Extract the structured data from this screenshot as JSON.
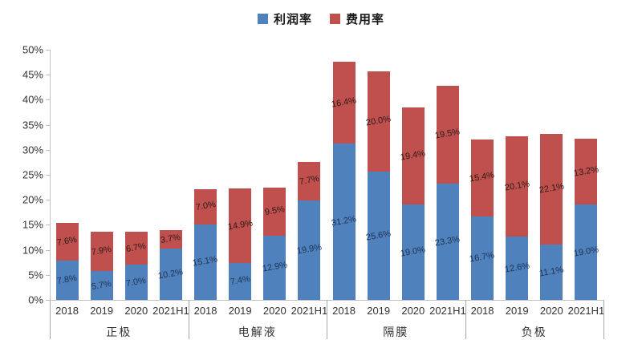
{
  "chart_data": {
    "type": "bar",
    "stacked": true,
    "title": "",
    "legend_position": "top",
    "grid": false,
    "ylim": [
      0,
      50
    ],
    "ytick_step": 5,
    "ytick_labels": [
      "0%",
      "5%",
      "10%",
      "15%",
      "20%",
      "25%",
      "30%",
      "35%",
      "40%",
      "45%",
      "50%"
    ],
    "groups": [
      "正极",
      "电解液",
      "隔膜",
      "负极"
    ],
    "years": [
      "2018",
      "2019",
      "2020",
      "2021H1"
    ],
    "series": [
      {
        "name": "利润率",
        "color": "#4F81BD",
        "label_color": "#1f3352",
        "values": [
          [
            7.8,
            5.7,
            7.0,
            10.2
          ],
          [
            15.1,
            7.4,
            12.9,
            19.9
          ],
          [
            31.2,
            25.6,
            19.0,
            23.3
          ],
          [
            16.7,
            12.6,
            11.1,
            19.0
          ]
        ]
      },
      {
        "name": "费用率",
        "color": "#C0504D",
        "label_color": "#2b1b1b",
        "values": [
          [
            7.6,
            7.9,
            6.7,
            3.7
          ],
          [
            7.0,
            14.9,
            9.5,
            7.7
          ],
          [
            16.4,
            20.0,
            19.4,
            19.5
          ],
          [
            15.4,
            20.1,
            22.1,
            13.2
          ]
        ]
      }
    ],
    "axis_color": "#BFBFBF",
    "separator_color": "#A6A6A6"
  }
}
